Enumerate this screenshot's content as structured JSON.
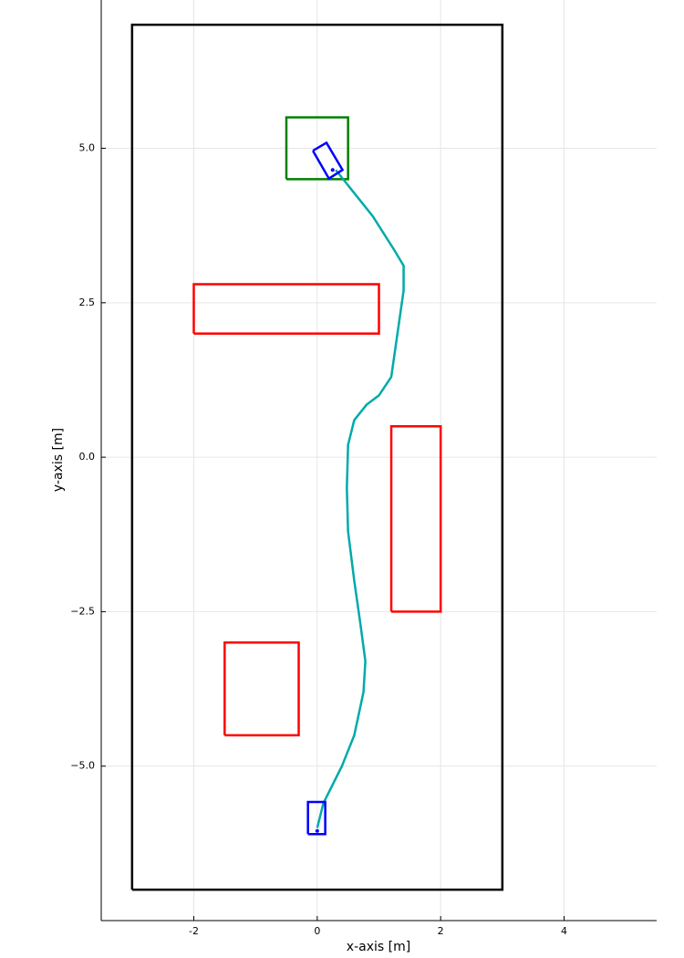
{
  "chart_data": {
    "type": "line",
    "xlabel": "x-axis [m]",
    "ylabel": "y-axis [m]",
    "xlim": [
      -3.5,
      5.5
    ],
    "ylim": [
      -7.5,
      7.4
    ],
    "xticks": [
      -2,
      0,
      2,
      4
    ],
    "yticks": [
      {
        "value": -5,
        "label": "−5.0"
      },
      {
        "value": -2.5,
        "label": "−2.5"
      },
      {
        "value": 0,
        "label": "0.0"
      },
      {
        "value": 2.5,
        "label": "2.5"
      },
      {
        "value": 5,
        "label": "5.0"
      }
    ],
    "grid": true,
    "series": [
      {
        "color": "#000000",
        "x": [
          -3,
          3,
          3,
          -3,
          -3
        ],
        "y": [
          -7,
          -7,
          7,
          7,
          -7
        ]
      },
      {
        "color": "#ff0000",
        "x": [
          -2,
          1,
          1,
          -2,
          -2
        ],
        "y": [
          2,
          2,
          2.8,
          2.8,
          2
        ]
      },
      {
        "color": "#ff0000",
        "x": [
          1.2,
          2,
          2,
          1.2,
          1.2
        ],
        "y": [
          -2.5,
          -2.5,
          0.5,
          0.5,
          -2.5
        ]
      },
      {
        "color": "#ff0000",
        "x": [
          -1.5,
          -0.3,
          -0.3,
          -1.5,
          -1.5
        ],
        "y": [
          -4.5,
          -4.5,
          -3,
          -3,
          -4.5
        ]
      },
      {
        "color": "#008000",
        "x": [
          -0.5,
          0.5,
          0.5,
          -0.5,
          -0.5
        ],
        "y": [
          4.5,
          4.5,
          5.5,
          5.5,
          4.5
        ]
      },
      {
        "color": "#00aaaa",
        "x": [
          0,
          0.1,
          0.4,
          0.6,
          0.75,
          0.78,
          0.7,
          0.6,
          0.5,
          0.48,
          0.5,
          0.6,
          0.8,
          1.0,
          1.2,
          1.3,
          1.4,
          1.4,
          1.25,
          0.9,
          0.5,
          0.3
        ],
        "y": [
          -6.0,
          -5.6,
          -5.0,
          -4.5,
          -3.8,
          -3.3,
          -2.7,
          -2.0,
          -1.2,
          -0.5,
          0.2,
          0.6,
          0.85,
          1.0,
          1.3,
          2.0,
          2.7,
          3.1,
          3.35,
          3.9,
          4.4,
          4.65
        ]
      },
      {
        "color": "#0000ff",
        "x": [
          -0.15,
          0.13,
          0.13,
          -0.15,
          -0.15
        ],
        "y": [
          -6.1,
          -6.1,
          -5.58,
          -5.58,
          -6.1
        ]
      },
      {
        "color": "#0000ff",
        "x": [
          -0.07,
          0.15,
          0.41,
          0.19,
          -0.07
        ],
        "y": [
          4.96,
          5.09,
          4.65,
          4.51,
          4.96
        ]
      },
      {
        "color": "#0000ff",
        "type": "scatter",
        "x": [
          0,
          0.25
        ],
        "y": [
          -6.05,
          4.65
        ]
      }
    ]
  }
}
